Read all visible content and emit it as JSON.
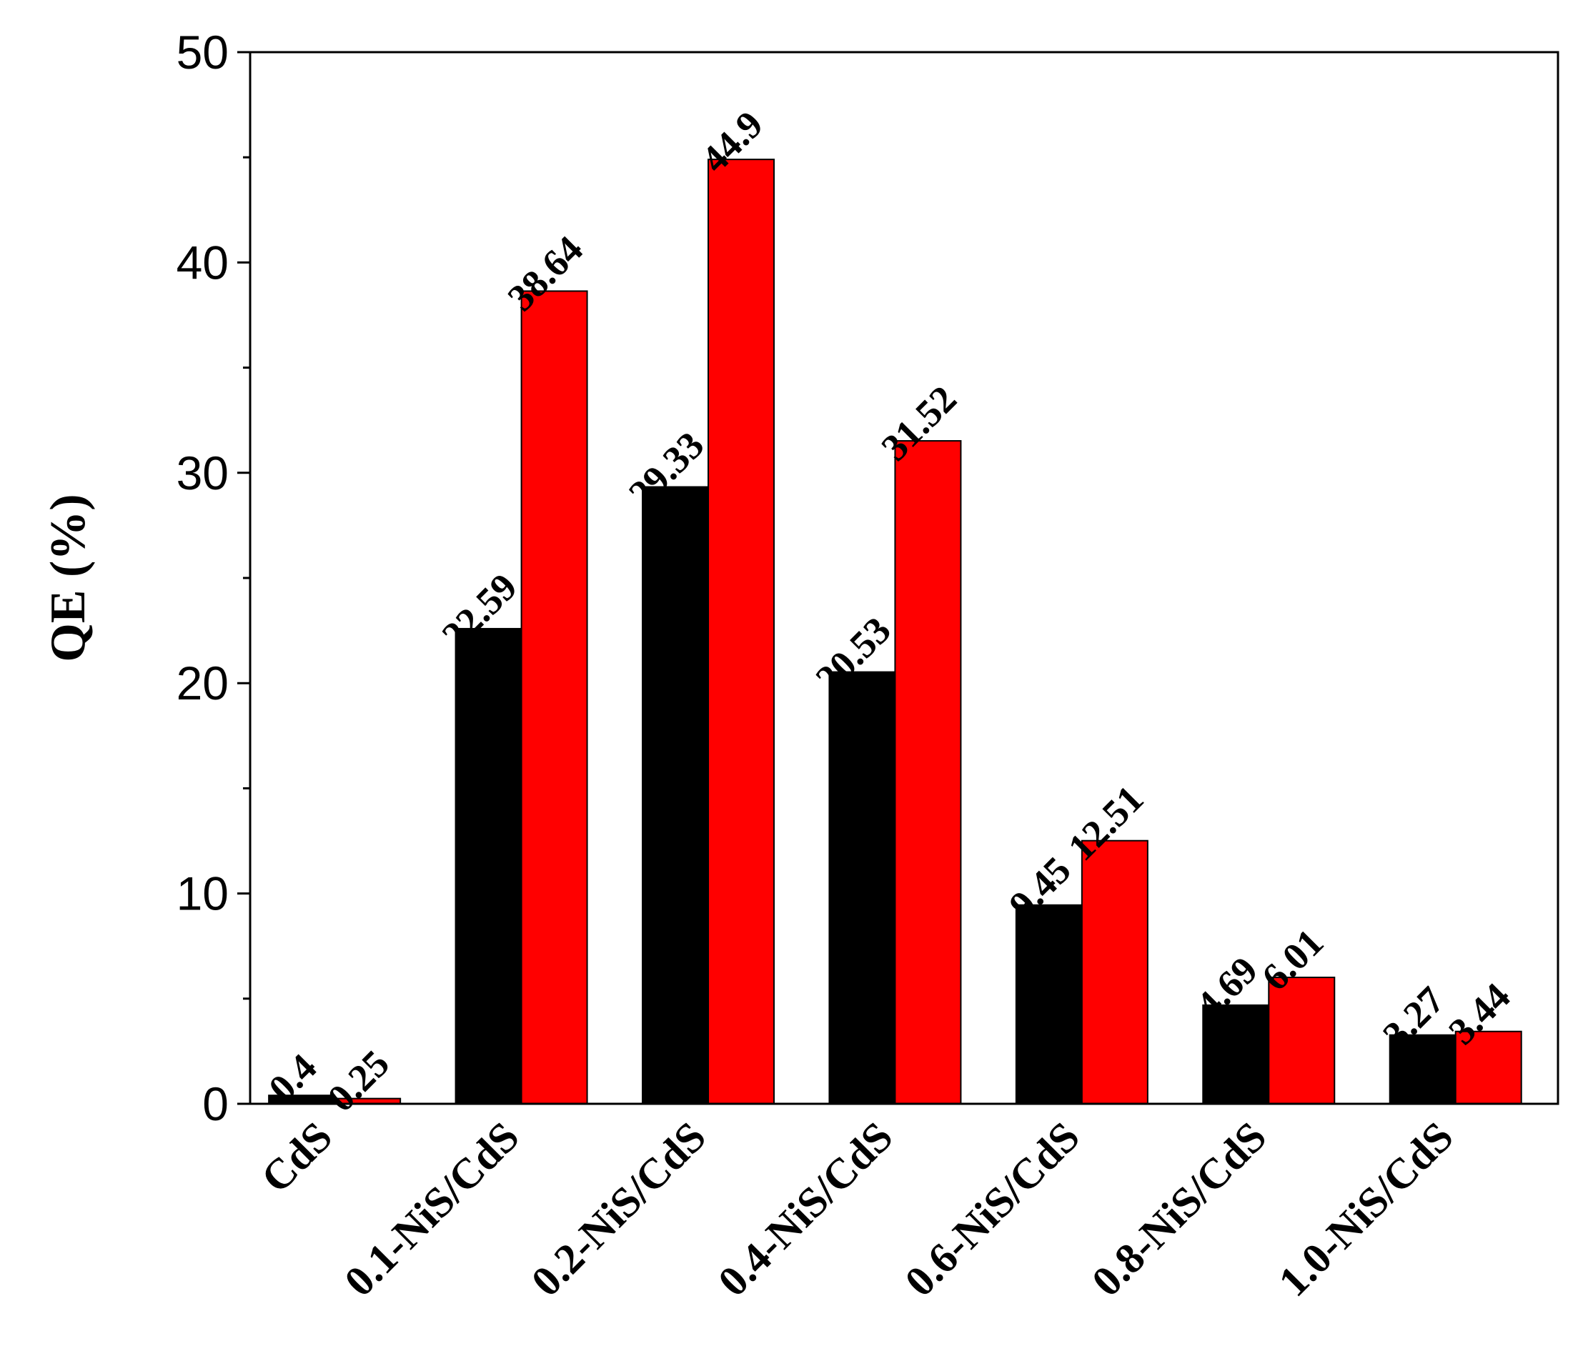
{
  "chart_data": {
    "type": "bar",
    "categories": [
      "CdS",
      "0.1-NiS/CdS",
      "0.2-NiS/CdS",
      "0.4-NiS/CdS",
      "0.6-NiS/CdS",
      "0.8-NiS/CdS",
      "1.0-NiS/CdS"
    ],
    "series": [
      {
        "values": [
          0.4,
          22.59,
          29.33,
          20.53,
          9.45,
          4.69,
          3.27
        ],
        "labels": [
          "0.4",
          "22.59",
          "29.33",
          "20.53",
          "9.45",
          "4.69",
          "3.27"
        ],
        "color": "#000000"
      },
      {
        "values": [
          0.25,
          38.64,
          44.9,
          31.52,
          12.51,
          6.01,
          3.44
        ],
        "labels": [
          "0.25",
          "38.64",
          "44.9",
          "31.52",
          "12.51",
          "6.01",
          "3.44"
        ],
        "color": "#ff0000"
      }
    ],
    "xlabel": "",
    "ylabel": "QE (%)",
    "ylim": [
      0,
      50
    ],
    "yticks": [
      0,
      10,
      20,
      30,
      40,
      50
    ],
    "grid": false,
    "legend": "none"
  }
}
